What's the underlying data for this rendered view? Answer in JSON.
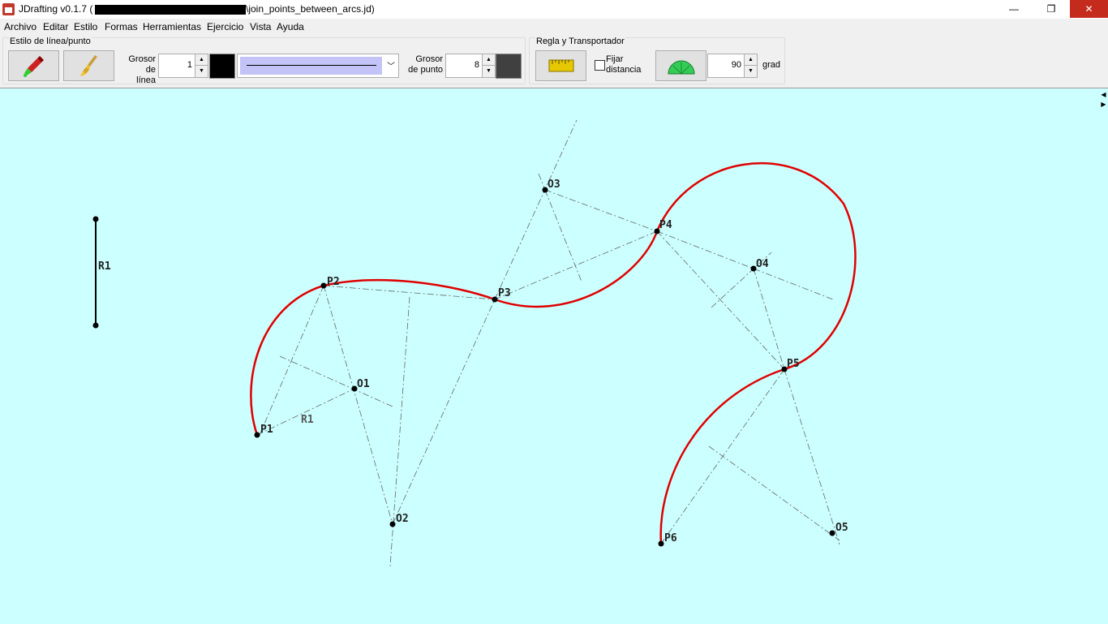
{
  "window": {
    "title_prefix": "JDrafting   v0.1.7 (",
    "title_suffix": "\\join_points_between_arcs.jd)",
    "minimize_glyph": "—",
    "maximize_glyph": "❐",
    "close_glyph": "✕"
  },
  "menu": [
    "Archivo",
    "Editar",
    "Estilo",
    "Formas",
    "Herramientas",
    "Ejercicio",
    "Vista",
    "Ayuda"
  ],
  "style_group": {
    "title": "Estilo de línea/punto",
    "line_thickness_label_1": "Grosor",
    "line_thickness_label_2": "de línea",
    "line_thickness_value": "1",
    "line_color": "#000000",
    "point_thickness_label_1": "Grosor",
    "point_thickness_label_2": "de punto",
    "point_thickness_value": "8",
    "point_color": "#404040"
  },
  "ruler_group": {
    "title": "Regla y Transportador",
    "fix_distance_label_1": "Fijar",
    "fix_distance_label_2": "distancia",
    "fix_distance_checked": false,
    "angle_value": "90",
    "angle_unit": "grad"
  },
  "canvas": {
    "background": "#ccffff",
    "labels": {
      "r1_segment": "R1",
      "r1_arc": "R1",
      "p1": "P1",
      "p2": "P2",
      "p3": "P3",
      "p4": "P4",
      "p5": "P5",
      "p6": "P6",
      "o1": "O1",
      "o2": "O2",
      "o3": "O3",
      "o4": "O4",
      "o5": "O5"
    },
    "arc_color": "#e00000"
  }
}
